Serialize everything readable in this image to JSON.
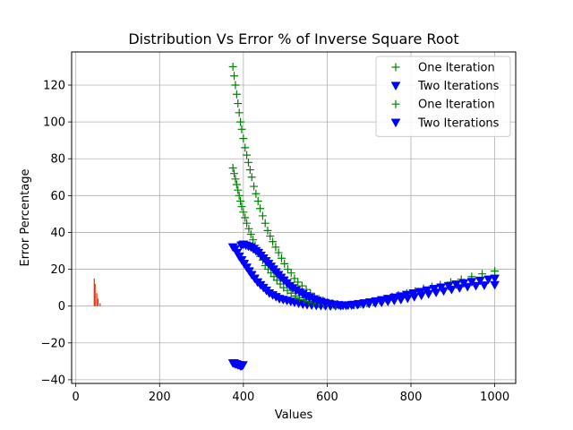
{
  "chart_data": {
    "type": "scatter",
    "title": "Distribution Vs Error % of Inverse Square Root",
    "xlabel": "Values",
    "ylabel": "Error Percentage",
    "xlim": [
      -10,
      1050
    ],
    "ylim": [
      -42,
      138
    ],
    "xticks": [
      0,
      200,
      400,
      600,
      800,
      1000
    ],
    "yticks": [
      -40,
      -20,
      0,
      20,
      40,
      60,
      80,
      100,
      120
    ],
    "grid": true,
    "legend_position": "top-right",
    "colors": {
      "green": "#008000",
      "blue": "#0000ff",
      "red": "#ff2200"
    },
    "legend": [
      {
        "label": "One Iteration",
        "marker": "plus",
        "color": "#008000"
      },
      {
        "label": "Two Iterations",
        "marker": "triangle-down",
        "color": "#0000ff"
      },
      {
        "label": "One Iteration",
        "marker": "plus",
        "color": "#008000"
      },
      {
        "label": "Two Iterations",
        "marker": "triangle-down",
        "color": "#0000ff"
      }
    ],
    "series": [
      {
        "marker": "plus",
        "color": "#008000",
        "points": [
          [
            375,
            130
          ],
          [
            378,
            125
          ],
          [
            381,
            120
          ],
          [
            384,
            115
          ],
          [
            387,
            110
          ],
          [
            390,
            105
          ],
          [
            393,
            100
          ],
          [
            396,
            96
          ],
          [
            400,
            91
          ],
          [
            404,
            86
          ],
          [
            408,
            82
          ],
          [
            412,
            78
          ],
          [
            416,
            74
          ],
          [
            420,
            70
          ],
          [
            425,
            65
          ],
          [
            430,
            61
          ],
          [
            435,
            57
          ],
          [
            440,
            53
          ],
          [
            446,
            49
          ],
          [
            452,
            45
          ],
          [
            458,
            41
          ],
          [
            464,
            38
          ],
          [
            470,
            35
          ],
          [
            477,
            32
          ],
          [
            484,
            29
          ],
          [
            491,
            26
          ],
          [
            498,
            23
          ],
          [
            506,
            20
          ],
          [
            514,
            18
          ],
          [
            522,
            15
          ],
          [
            530,
            13
          ],
          [
            540,
            11
          ],
          [
            550,
            9
          ],
          [
            560,
            7
          ],
          [
            570,
            5
          ],
          [
            580,
            4
          ],
          [
            590,
            3
          ],
          [
            600,
            2
          ],
          [
            612,
            1.5
          ],
          [
            624,
            1
          ],
          [
            636,
            0.6
          ],
          [
            650,
            0.3
          ],
          [
            665,
            0.5
          ],
          [
            680,
            1
          ],
          [
            695,
            1.5
          ],
          [
            710,
            2
          ],
          [
            725,
            3
          ],
          [
            740,
            4
          ],
          [
            755,
            5
          ],
          [
            770,
            6
          ],
          [
            790,
            7
          ],
          [
            810,
            8
          ],
          [
            830,
            9.5
          ],
          [
            850,
            10.5
          ],
          [
            870,
            11.5
          ],
          [
            895,
            13
          ],
          [
            920,
            14.5
          ],
          [
            945,
            16
          ],
          [
            970,
            17.5
          ],
          [
            1000,
            19
          ]
        ]
      },
      {
        "marker": "triangle-down",
        "color": "#0000ff",
        "points": [
          [
            375,
            32
          ],
          [
            380,
            31
          ],
          [
            385,
            29
          ],
          [
            390,
            27
          ],
          [
            396,
            25
          ],
          [
            402,
            23
          ],
          [
            408,
            21
          ],
          [
            414,
            19
          ],
          [
            420,
            17
          ],
          [
            427,
            15
          ],
          [
            434,
            13
          ],
          [
            441,
            11.5
          ],
          [
            448,
            10
          ],
          [
            455,
            8.5
          ],
          [
            462,
            7
          ],
          [
            470,
            6
          ],
          [
            478,
            5
          ],
          [
            486,
            4
          ],
          [
            495,
            3.5
          ],
          [
            504,
            3
          ],
          [
            513,
            2.5
          ],
          [
            522,
            2
          ],
          [
            532,
            1.5
          ],
          [
            542,
            1
          ],
          [
            552,
            0.7
          ],
          [
            563,
            0.5
          ],
          [
            574,
            0.3
          ],
          [
            585,
            0.2
          ],
          [
            596,
            0.1
          ],
          [
            608,
            0
          ],
          [
            620,
            0.1
          ],
          [
            632,
            0.2
          ],
          [
            645,
            0.3
          ],
          [
            658,
            0.5
          ],
          [
            672,
            0.7
          ],
          [
            686,
            1
          ],
          [
            700,
            1.3
          ],
          [
            715,
            1.6
          ],
          [
            730,
            2
          ],
          [
            745,
            2.5
          ],
          [
            760,
            3
          ],
          [
            776,
            3.5
          ],
          [
            792,
            4.2
          ],
          [
            808,
            5
          ],
          [
            825,
            5.8
          ],
          [
            842,
            6.6
          ],
          [
            860,
            7.4
          ],
          [
            878,
            8.2
          ],
          [
            897,
            9
          ],
          [
            916,
            9.8
          ],
          [
            935,
            10.5
          ],
          [
            955,
            11
          ],
          [
            975,
            11.3
          ],
          [
            1000,
            11.5
          ]
        ]
      },
      {
        "marker": "plus",
        "color": "#008000",
        "points": [
          [
            375,
            75
          ],
          [
            378,
            72
          ],
          [
            381,
            69
          ],
          [
            384,
            66
          ],
          [
            387,
            63
          ],
          [
            390,
            60
          ],
          [
            393,
            57
          ],
          [
            396,
            54
          ],
          [
            400,
            51
          ],
          [
            404,
            48
          ],
          [
            408,
            45
          ],
          [
            413,
            42
          ],
          [
            418,
            39
          ],
          [
            423,
            36
          ],
          [
            428,
            33
          ],
          [
            434,
            30
          ],
          [
            440,
            27
          ],
          [
            446,
            25
          ],
          [
            452,
            22
          ],
          [
            459,
            20
          ],
          [
            466,
            18
          ],
          [
            473,
            16
          ],
          [
            480,
            14
          ],
          [
            488,
            12
          ],
          [
            496,
            10
          ],
          [
            505,
            8.5
          ],
          [
            514,
            7
          ],
          [
            524,
            5.5
          ],
          [
            534,
            4.5
          ],
          [
            545,
            3.5
          ],
          [
            556,
            2.5
          ],
          [
            568,
            1.8
          ],
          [
            580,
            1.2
          ],
          [
            592,
            0.8
          ],
          [
            605,
            0.4
          ],
          [
            620,
            0.2
          ],
          [
            635,
            0.3
          ],
          [
            650,
            0.6
          ]
        ]
      },
      {
        "marker": "triangle-down",
        "color": "#0000ff",
        "points": [
          [
            395,
            33
          ],
          [
            400,
            33.5
          ],
          [
            406,
            33
          ],
          [
            412,
            32.5
          ],
          [
            418,
            32
          ],
          [
            424,
            31
          ],
          [
            430,
            30
          ],
          [
            436,
            29
          ],
          [
            442,
            27.5
          ],
          [
            448,
            26
          ],
          [
            454,
            24.5
          ],
          [
            460,
            23
          ],
          [
            466,
            21.5
          ],
          [
            472,
            20
          ],
          [
            478,
            18.5
          ],
          [
            484,
            17
          ],
          [
            490,
            15.5
          ],
          [
            497,
            14
          ],
          [
            504,
            12.5
          ],
          [
            511,
            11
          ],
          [
            518,
            9.8
          ],
          [
            526,
            8.6
          ],
          [
            534,
            7.5
          ],
          [
            542,
            6.5
          ],
          [
            550,
            5.5
          ],
          [
            558,
            4.6
          ],
          [
            567,
            3.8
          ],
          [
            576,
            3
          ],
          [
            585,
            2.4
          ],
          [
            595,
            1.8
          ],
          [
            605,
            1.3
          ],
          [
            616,
            0.9
          ],
          [
            627,
            0.6
          ],
          [
            638,
            0.4
          ],
          [
            650,
            0.5
          ],
          [
            662,
            0.8
          ],
          [
            675,
            1.2
          ],
          [
            688,
            1.6
          ],
          [
            702,
            2.1
          ],
          [
            716,
            2.7
          ],
          [
            730,
            3.3
          ],
          [
            745,
            4
          ],
          [
            760,
            4.7
          ],
          [
            775,
            5.4
          ],
          [
            790,
            6.2
          ],
          [
            806,
            7
          ],
          [
            822,
            7.8
          ],
          [
            838,
            8.6
          ],
          [
            855,
            9.4
          ],
          [
            872,
            10.2
          ],
          [
            890,
            11
          ],
          [
            908,
            11.8
          ],
          [
            926,
            12.5
          ],
          [
            945,
            13.2
          ],
          [
            965,
            13.9
          ],
          [
            985,
            14.5
          ],
          [
            1000,
            15
          ]
        ]
      },
      {
        "marker": "triangle-down",
        "color": "#0000ff",
        "points": [
          [
            375,
            -31
          ],
          [
            378,
            -31
          ],
          [
            381,
            -31.5
          ],
          [
            384,
            -31.5
          ],
          [
            387,
            -32
          ],
          [
            390,
            -32
          ],
          [
            393,
            -32.5
          ],
          [
            396,
            -32.5
          ],
          [
            399,
            -32
          ]
        ]
      }
    ],
    "bars": [
      {
        "color": "#ff2200",
        "x": 44,
        "y": 15
      },
      {
        "color": "#ff2200",
        "x": 46,
        "y": 12
      },
      {
        "color": "#ff2200",
        "x": 50,
        "y": 7
      },
      {
        "color": "#ff2200",
        "x": 53,
        "y": 4
      },
      {
        "color": "#ff2200",
        "x": 58,
        "y": 1.5
      }
    ]
  }
}
